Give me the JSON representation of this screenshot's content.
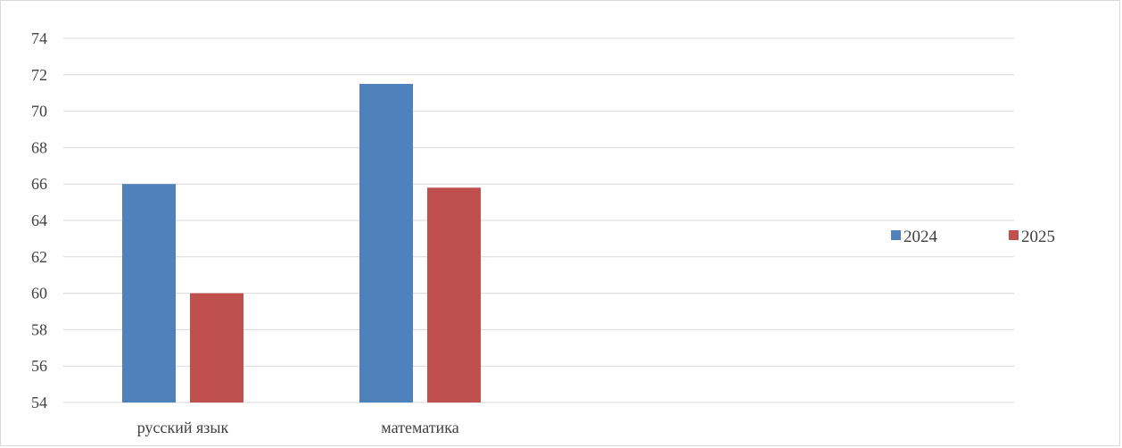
{
  "chart_data": {
    "type": "bar",
    "title": "",
    "xlabel": "",
    "ylabel": "",
    "categories": [
      "русский язык",
      "математика"
    ],
    "series": [
      {
        "name": "2024",
        "values": [
          66,
          71.5
        ],
        "color": "#4f81bd"
      },
      {
        "name": "2025",
        "values": [
          60,
          65.8
        ],
        "color": "#c0504d"
      }
    ],
    "ylim": [
      54,
      74
    ],
    "yticks": [
      54,
      56,
      58,
      60,
      62,
      64,
      66,
      68,
      70,
      72,
      74
    ],
    "grid": true,
    "legend_position": "right"
  }
}
